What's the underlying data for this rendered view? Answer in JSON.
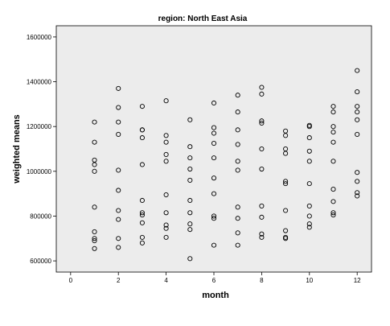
{
  "chart_data": {
    "type": "scatter",
    "title": "region: North East Asia",
    "xlabel": "month",
    "ylabel": "weighted means",
    "xlim": [
      -0.6,
      12.6
    ],
    "ylim": [
      550000,
      1650000
    ],
    "xticks": [
      0,
      2,
      4,
      6,
      8,
      10,
      12
    ],
    "xtick_labels": [
      "0",
      "2",
      "4",
      "6",
      "8",
      "10",
      "12"
    ],
    "yticks": [
      600000,
      800000,
      1000000,
      1200000,
      1400000,
      1600000
    ],
    "ytick_labels": [
      "600000",
      "800000",
      "1000000",
      "1200000",
      "1400000",
      "1600000"
    ],
    "grid": false,
    "plot_background": "#ececec",
    "marker": "open-circle",
    "points": [
      {
        "x": 1,
        "y": 1220000
      },
      {
        "x": 1,
        "y": 1130000
      },
      {
        "x": 1,
        "y": 1050000
      },
      {
        "x": 1,
        "y": 1030000
      },
      {
        "x": 1,
        "y": 1000000
      },
      {
        "x": 1,
        "y": 840000
      },
      {
        "x": 1,
        "y": 730000
      },
      {
        "x": 1,
        "y": 700000
      },
      {
        "x": 1,
        "y": 690000
      },
      {
        "x": 1,
        "y": 655000
      },
      {
        "x": 2,
        "y": 1370000
      },
      {
        "x": 2,
        "y": 1285000
      },
      {
        "x": 2,
        "y": 1220000
      },
      {
        "x": 2,
        "y": 1165000
      },
      {
        "x": 2,
        "y": 1005000
      },
      {
        "x": 2,
        "y": 915000
      },
      {
        "x": 2,
        "y": 825000
      },
      {
        "x": 2,
        "y": 785000
      },
      {
        "x": 2,
        "y": 700000
      },
      {
        "x": 2,
        "y": 660000
      },
      {
        "x": 3,
        "y": 1290000
      },
      {
        "x": 3,
        "y": 1185000
      },
      {
        "x": 3,
        "y": 1185000
      },
      {
        "x": 3,
        "y": 1150000
      },
      {
        "x": 3,
        "y": 1030000
      },
      {
        "x": 3,
        "y": 870000
      },
      {
        "x": 3,
        "y": 815000
      },
      {
        "x": 3,
        "y": 805000
      },
      {
        "x": 3,
        "y": 770000
      },
      {
        "x": 3,
        "y": 705000
      },
      {
        "x": 3,
        "y": 680000
      },
      {
        "x": 4,
        "y": 1315000
      },
      {
        "x": 4,
        "y": 1160000
      },
      {
        "x": 4,
        "y": 1130000
      },
      {
        "x": 4,
        "y": 1075000
      },
      {
        "x": 4,
        "y": 1045000
      },
      {
        "x": 4,
        "y": 895000
      },
      {
        "x": 4,
        "y": 815000
      },
      {
        "x": 4,
        "y": 760000
      },
      {
        "x": 4,
        "y": 745000
      },
      {
        "x": 4,
        "y": 705000
      },
      {
        "x": 5,
        "y": 1230000
      },
      {
        "x": 5,
        "y": 1110000
      },
      {
        "x": 5,
        "y": 1060000
      },
      {
        "x": 5,
        "y": 1010000
      },
      {
        "x": 5,
        "y": 960000
      },
      {
        "x": 5,
        "y": 870000
      },
      {
        "x": 5,
        "y": 815000
      },
      {
        "x": 5,
        "y": 765000
      },
      {
        "x": 5,
        "y": 740000
      },
      {
        "x": 5,
        "y": 610000
      },
      {
        "x": 6,
        "y": 1305000
      },
      {
        "x": 6,
        "y": 1195000
      },
      {
        "x": 6,
        "y": 1170000
      },
      {
        "x": 6,
        "y": 1125000
      },
      {
        "x": 6,
        "y": 1060000
      },
      {
        "x": 6,
        "y": 970000
      },
      {
        "x": 6,
        "y": 900000
      },
      {
        "x": 6,
        "y": 800000
      },
      {
        "x": 6,
        "y": 790000
      },
      {
        "x": 6,
        "y": 670000
      },
      {
        "x": 7,
        "y": 1340000
      },
      {
        "x": 7,
        "y": 1265000
      },
      {
        "x": 7,
        "y": 1185000
      },
      {
        "x": 7,
        "y": 1120000
      },
      {
        "x": 7,
        "y": 1045000
      },
      {
        "x": 7,
        "y": 1005000
      },
      {
        "x": 7,
        "y": 840000
      },
      {
        "x": 7,
        "y": 790000
      },
      {
        "x": 7,
        "y": 725000
      },
      {
        "x": 7,
        "y": 670000
      },
      {
        "x": 8,
        "y": 1375000
      },
      {
        "x": 8,
        "y": 1345000
      },
      {
        "x": 8,
        "y": 1225000
      },
      {
        "x": 8,
        "y": 1215000
      },
      {
        "x": 8,
        "y": 1100000
      },
      {
        "x": 8,
        "y": 1010000
      },
      {
        "x": 8,
        "y": 845000
      },
      {
        "x": 8,
        "y": 795000
      },
      {
        "x": 8,
        "y": 720000
      },
      {
        "x": 8,
        "y": 705000
      },
      {
        "x": 9,
        "y": 1180000
      },
      {
        "x": 9,
        "y": 1160000
      },
      {
        "x": 9,
        "y": 1100000
      },
      {
        "x": 9,
        "y": 1080000
      },
      {
        "x": 9,
        "y": 955000
      },
      {
        "x": 9,
        "y": 945000
      },
      {
        "x": 9,
        "y": 825000
      },
      {
        "x": 9,
        "y": 735000
      },
      {
        "x": 9,
        "y": 705000
      },
      {
        "x": 9,
        "y": 700000
      },
      {
        "x": 10,
        "y": 1205000
      },
      {
        "x": 10,
        "y": 1200000
      },
      {
        "x": 10,
        "y": 1150000
      },
      {
        "x": 10,
        "y": 1090000
      },
      {
        "x": 10,
        "y": 1045000
      },
      {
        "x": 10,
        "y": 945000
      },
      {
        "x": 10,
        "y": 845000
      },
      {
        "x": 10,
        "y": 800000
      },
      {
        "x": 10,
        "y": 765000
      },
      {
        "x": 10,
        "y": 750000
      },
      {
        "x": 11,
        "y": 1290000
      },
      {
        "x": 11,
        "y": 1265000
      },
      {
        "x": 11,
        "y": 1200000
      },
      {
        "x": 11,
        "y": 1175000
      },
      {
        "x": 11,
        "y": 1130000
      },
      {
        "x": 11,
        "y": 1045000
      },
      {
        "x": 11,
        "y": 920000
      },
      {
        "x": 11,
        "y": 865000
      },
      {
        "x": 11,
        "y": 815000
      },
      {
        "x": 11,
        "y": 805000
      },
      {
        "x": 12,
        "y": 1450000
      },
      {
        "x": 12,
        "y": 1355000
      },
      {
        "x": 12,
        "y": 1290000
      },
      {
        "x": 12,
        "y": 1265000
      },
      {
        "x": 12,
        "y": 1230000
      },
      {
        "x": 12,
        "y": 1165000
      },
      {
        "x": 12,
        "y": 995000
      },
      {
        "x": 12,
        "y": 955000
      },
      {
        "x": 12,
        "y": 905000
      },
      {
        "x": 12,
        "y": 890000
      }
    ]
  }
}
